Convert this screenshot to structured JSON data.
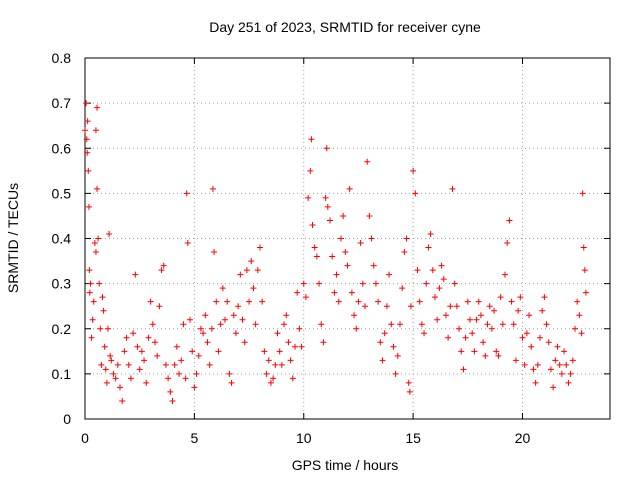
{
  "chart_data": {
    "type": "scatter",
    "title": "Day 251 of 2023, SRMTID for receiver cyne",
    "xlabel": "GPS time / hours",
    "ylabel": "SRMTID / TECUs",
    "xlim": [
      0,
      24
    ],
    "ylim": [
      0,
      0.8
    ],
    "xticks": [
      0,
      5,
      10,
      15,
      20
    ],
    "xtick_labels": [
      "0",
      "5",
      "10",
      "15",
      "20"
    ],
    "yticks": [
      0,
      0.1,
      0.2,
      0.3,
      0.4,
      0.5,
      0.6,
      0.7,
      0.8
    ],
    "ytick_labels": [
      "0",
      "0.1",
      "0.2",
      "0.3",
      "0.4",
      "0.5",
      "0.6",
      "0.7",
      "0.8"
    ],
    "grid": true,
    "marker": "plus",
    "series_color": "#ff0000",
    "series": [
      {
        "name": "SRMTID",
        "points": [
          [
            0.0,
            0.64
          ],
          [
            0.05,
            0.7
          ],
          [
            0.08,
            0.62
          ],
          [
            0.1,
            0.59
          ],
          [
            0.12,
            0.66
          ],
          [
            0.15,
            0.55
          ],
          [
            0.18,
            0.47
          ],
          [
            0.2,
            0.33
          ],
          [
            0.22,
            0.28
          ],
          [
            0.25,
            0.3
          ],
          [
            0.3,
            0.18
          ],
          [
            0.35,
            0.22
          ],
          [
            0.4,
            0.26
          ],
          [
            0.45,
            0.39
          ],
          [
            0.5,
            0.37
          ],
          [
            0.5,
            0.64
          ],
          [
            0.55,
            0.69
          ],
          [
            0.55,
            0.51
          ],
          [
            0.6,
            0.4
          ],
          [
            0.65,
            0.3
          ],
          [
            0.7,
            0.2
          ],
          [
            0.75,
            0.12
          ],
          [
            0.8,
            0.27
          ],
          [
            0.85,
            0.24
          ],
          [
            0.9,
            0.16
          ],
          [
            0.95,
            0.11
          ],
          [
            1.0,
            0.08
          ],
          [
            1.05,
            0.2
          ],
          [
            1.1,
            0.41
          ],
          [
            1.15,
            0.14
          ],
          [
            1.2,
            0.13
          ],
          [
            1.3,
            0.1
          ],
          [
            1.4,
            0.09
          ],
          [
            1.5,
            0.12
          ],
          [
            1.6,
            0.07
          ],
          [
            1.7,
            0.04
          ],
          [
            1.8,
            0.15
          ],
          [
            1.9,
            0.18
          ],
          [
            2.0,
            0.12
          ],
          [
            2.1,
            0.09
          ],
          [
            2.2,
            0.19
          ],
          [
            2.3,
            0.32
          ],
          [
            2.4,
            0.16
          ],
          [
            2.5,
            0.11
          ],
          [
            2.6,
            0.15
          ],
          [
            2.7,
            0.13
          ],
          [
            2.8,
            0.08
          ],
          [
            2.9,
            0.18
          ],
          [
            3.0,
            0.26
          ],
          [
            3.1,
            0.21
          ],
          [
            3.2,
            0.17
          ],
          [
            3.3,
            0.14
          ],
          [
            3.4,
            0.25
          ],
          [
            3.5,
            0.33
          ],
          [
            3.6,
            0.34
          ],
          [
            3.7,
            0.12
          ],
          [
            3.8,
            0.09
          ],
          [
            3.9,
            0.06
          ],
          [
            4.0,
            0.04
          ],
          [
            4.1,
            0.12
          ],
          [
            4.2,
            0.16
          ],
          [
            4.3,
            0.1
          ],
          [
            4.4,
            0.13
          ],
          [
            4.5,
            0.21
          ],
          [
            4.6,
            0.09
          ],
          [
            4.65,
            0.5
          ],
          [
            4.7,
            0.39
          ],
          [
            4.8,
            0.22
          ],
          [
            4.9,
            0.15
          ],
          [
            5.0,
            0.07
          ],
          [
            5.1,
            0.1
          ],
          [
            5.2,
            0.14
          ],
          [
            5.3,
            0.2
          ],
          [
            5.4,
            0.19
          ],
          [
            5.5,
            0.23
          ],
          [
            5.6,
            0.17
          ],
          [
            5.7,
            0.12
          ],
          [
            5.8,
            0.2
          ],
          [
            5.85,
            0.51
          ],
          [
            5.9,
            0.37
          ],
          [
            6.0,
            0.26
          ],
          [
            6.1,
            0.15
          ],
          [
            6.2,
            0.21
          ],
          [
            6.3,
            0.29
          ],
          [
            6.4,
            0.22
          ],
          [
            6.5,
            0.26
          ],
          [
            6.6,
            0.1
          ],
          [
            6.7,
            0.08
          ],
          [
            6.8,
            0.23
          ],
          [
            6.9,
            0.19
          ],
          [
            7.0,
            0.25
          ],
          [
            7.1,
            0.32
          ],
          [
            7.2,
            0.22
          ],
          [
            7.3,
            0.17
          ],
          [
            7.4,
            0.33
          ],
          [
            7.5,
            0.26
          ],
          [
            7.6,
            0.35
          ],
          [
            7.7,
            0.29
          ],
          [
            7.8,
            0.21
          ],
          [
            7.9,
            0.33
          ],
          [
            8.0,
            0.38
          ],
          [
            8.1,
            0.26
          ],
          [
            8.2,
            0.15
          ],
          [
            8.3,
            0.1
          ],
          [
            8.4,
            0.13
          ],
          [
            8.5,
            0.08
          ],
          [
            8.6,
            0.09
          ],
          [
            8.7,
            0.12
          ],
          [
            8.8,
            0.19
          ],
          [
            8.9,
            0.15
          ],
          [
            9.0,
            0.12
          ],
          [
            9.1,
            0.21
          ],
          [
            9.2,
            0.23
          ],
          [
            9.3,
            0.17
          ],
          [
            9.4,
            0.13
          ],
          [
            9.5,
            0.09
          ],
          [
            9.6,
            0.16
          ],
          [
            9.7,
            0.28
          ],
          [
            9.8,
            0.2
          ],
          [
            9.9,
            0.16
          ],
          [
            10.0,
            0.3
          ],
          [
            10.1,
            0.27
          ],
          [
            10.2,
            0.49
          ],
          [
            10.3,
            0.55
          ],
          [
            10.35,
            0.62
          ],
          [
            10.4,
            0.43
          ],
          [
            10.5,
            0.38
          ],
          [
            10.6,
            0.36
          ],
          [
            10.7,
            0.3
          ],
          [
            10.8,
            0.21
          ],
          [
            10.9,
            0.17
          ],
          [
            11.0,
            0.49
          ],
          [
            11.05,
            0.6
          ],
          [
            11.1,
            0.47
          ],
          [
            11.2,
            0.44
          ],
          [
            11.3,
            0.36
          ],
          [
            11.4,
            0.28
          ],
          [
            11.5,
            0.32
          ],
          [
            11.6,
            0.26
          ],
          [
            11.7,
            0.4
          ],
          [
            11.8,
            0.45
          ],
          [
            11.9,
            0.37
          ],
          [
            12.0,
            0.34
          ],
          [
            12.1,
            0.51
          ],
          [
            12.2,
            0.28
          ],
          [
            12.3,
            0.23
          ],
          [
            12.4,
            0.2
          ],
          [
            12.5,
            0.26
          ],
          [
            12.6,
            0.39
          ],
          [
            12.7,
            0.3
          ],
          [
            12.8,
            0.25
          ],
          [
            12.9,
            0.57
          ],
          [
            13.0,
            0.45
          ],
          [
            13.1,
            0.4
          ],
          [
            13.2,
            0.34
          ],
          [
            13.3,
            0.3
          ],
          [
            13.4,
            0.26
          ],
          [
            13.5,
            0.17
          ],
          [
            13.6,
            0.13
          ],
          [
            13.7,
            0.19
          ],
          [
            13.8,
            0.25
          ],
          [
            13.9,
            0.32
          ],
          [
            14.0,
            0.21
          ],
          [
            14.1,
            0.16
          ],
          [
            14.2,
            0.1
          ],
          [
            14.3,
            0.14
          ],
          [
            14.4,
            0.21
          ],
          [
            14.5,
            0.29
          ],
          [
            14.6,
            0.37
          ],
          [
            14.7,
            0.4
          ],
          [
            14.8,
            0.08
          ],
          [
            14.85,
            0.06
          ],
          [
            14.9,
            0.25
          ],
          [
            15.0,
            0.55
          ],
          [
            15.1,
            0.5
          ],
          [
            15.2,
            0.33
          ],
          [
            15.3,
            0.26
          ],
          [
            15.4,
            0.21
          ],
          [
            15.5,
            0.19
          ],
          [
            15.6,
            0.3
          ],
          [
            15.7,
            0.38
          ],
          [
            15.8,
            0.41
          ],
          [
            15.9,
            0.33
          ],
          [
            16.0,
            0.27
          ],
          [
            16.1,
            0.22
          ],
          [
            16.2,
            0.29
          ],
          [
            16.3,
            0.34
          ],
          [
            16.4,
            0.31
          ],
          [
            16.5,
            0.23
          ],
          [
            16.6,
            0.18
          ],
          [
            16.7,
            0.25
          ],
          [
            16.8,
            0.51
          ],
          [
            16.9,
            0.3
          ],
          [
            17.0,
            0.25
          ],
          [
            17.1,
            0.2
          ],
          [
            17.2,
            0.15
          ],
          [
            17.3,
            0.11
          ],
          [
            17.4,
            0.18
          ],
          [
            17.5,
            0.26
          ],
          [
            17.6,
            0.22
          ],
          [
            17.7,
            0.19
          ],
          [
            17.8,
            0.15
          ],
          [
            17.9,
            0.22
          ],
          [
            18.0,
            0.26
          ],
          [
            18.1,
            0.23
          ],
          [
            18.2,
            0.17
          ],
          [
            18.3,
            0.14
          ],
          [
            18.4,
            0.21
          ],
          [
            18.5,
            0.25
          ],
          [
            18.6,
            0.2
          ],
          [
            18.7,
            0.24
          ],
          [
            18.8,
            0.15
          ],
          [
            18.9,
            0.14
          ],
          [
            19.0,
            0.27
          ],
          [
            19.1,
            0.21
          ],
          [
            19.2,
            0.32
          ],
          [
            19.3,
            0.39
          ],
          [
            19.4,
            0.44
          ],
          [
            19.5,
            0.26
          ],
          [
            19.6,
            0.21
          ],
          [
            19.7,
            0.13
          ],
          [
            19.8,
            0.24
          ],
          [
            19.9,
            0.27
          ],
          [
            20.0,
            0.18
          ],
          [
            20.1,
            0.12
          ],
          [
            20.2,
            0.19
          ],
          [
            20.3,
            0.23
          ],
          [
            20.4,
            0.16
          ],
          [
            20.5,
            0.11
          ],
          [
            20.6,
            0.08
          ],
          [
            20.7,
            0.12
          ],
          [
            20.8,
            0.18
          ],
          [
            20.9,
            0.24
          ],
          [
            21.0,
            0.27
          ],
          [
            21.1,
            0.21
          ],
          [
            21.2,
            0.17
          ],
          [
            21.3,
            0.11
          ],
          [
            21.4,
            0.07
          ],
          [
            21.5,
            0.13
          ],
          [
            21.6,
            0.16
          ],
          [
            21.7,
            0.12
          ],
          [
            21.8,
            0.1
          ],
          [
            21.9,
            0.15
          ],
          [
            22.0,
            0.12
          ],
          [
            22.1,
            0.08
          ],
          [
            22.2,
            0.1
          ],
          [
            22.3,
            0.13
          ],
          [
            22.4,
            0.2
          ],
          [
            22.5,
            0.26
          ],
          [
            22.6,
            0.23
          ],
          [
            22.7,
            0.19
          ],
          [
            22.75,
            0.5
          ],
          [
            22.8,
            0.38
          ],
          [
            22.85,
            0.33
          ],
          [
            22.9,
            0.28
          ]
        ]
      }
    ]
  }
}
